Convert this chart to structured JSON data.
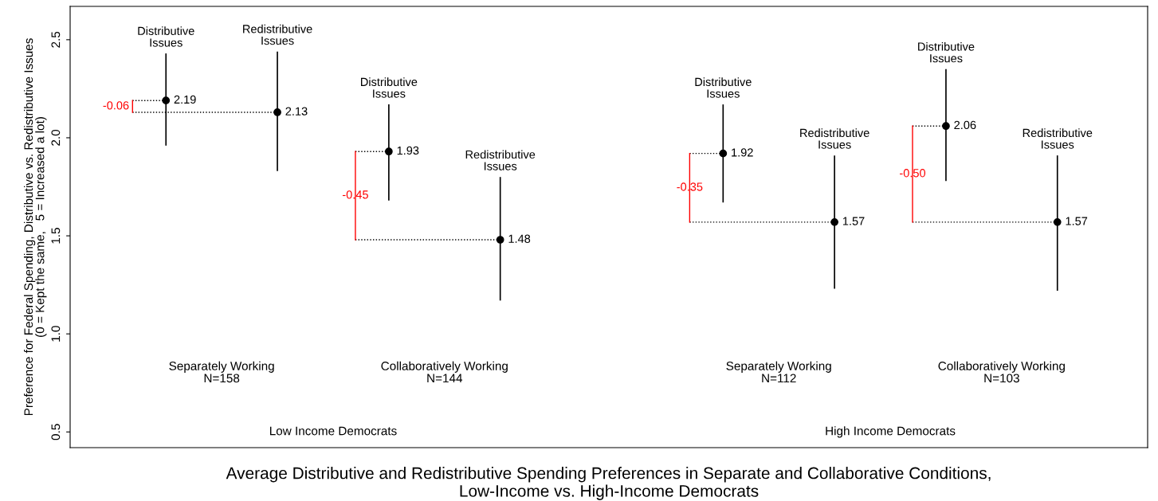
{
  "chart_data": {
    "type": "scatter",
    "title": "Average Distributive and Redistributive Spending Preferences in Separate and Collaborative Conditions,\nLow-Income vs. High-Income Democrats",
    "ylabel": "Preference for Federal Spending, Distributive vs. Redistributive Issues\n(0 = Kept the same,   5 = Increased a lot)",
    "categories": [
      null,
      null,
      null,
      null,
      null,
      null,
      null,
      null,
      null
    ],
    "series": [
      {
        "color": "#000000",
        "values": [
          2.19,
          2.13,
          1.93,
          1.48,
          null,
          1.92,
          1.57,
          2.06,
          1.57
        ],
        "errors": [
          [
            1.96,
            2.43
          ],
          [
            1.83,
            2.44
          ],
          [
            1.68,
            2.17
          ],
          [
            1.17,
            1.8
          ],
          null,
          [
            1.67,
            2.17
          ],
          [
            1.23,
            1.91
          ],
          [
            1.78,
            2.35
          ],
          [
            1.22,
            1.91
          ]
        ]
      }
    ],
    "marker": "circle",
    "data_labels": true,
    "ylim": [
      0.42,
      2.67
    ],
    "yticks": [
      {
        "value": 0.5,
        "label": "0.5"
      },
      {
        "value": 1,
        "label": "1.0"
      },
      {
        "value": 1.5,
        "label": "1.5"
      },
      {
        "value": 2,
        "label": "2.0"
      },
      {
        "value": 2.5,
        "label": "2.5"
      }
    ],
    "tick_labels": "y",
    "annotations": [
      "Distributive\nIssues",
      "Redistributive\nIssues",
      "Distributive\nIssues",
      "Redistributive\nIssues",
      "Distributive\nIssues",
      "Redistributive\nIssues",
      "Distributive\nIssues",
      "Redistributive\nIssues",
      "-0.06",
      "-0.45",
      "-0.35",
      "-0.50",
      "Separately Working\nN=158",
      "Collaboratively Working\nN=144",
      "Separately Working\nN=112",
      "Collaboratively Working\nN=103",
      "Low Income Democrats",
      "High Income Democrats"
    ]
  }
}
